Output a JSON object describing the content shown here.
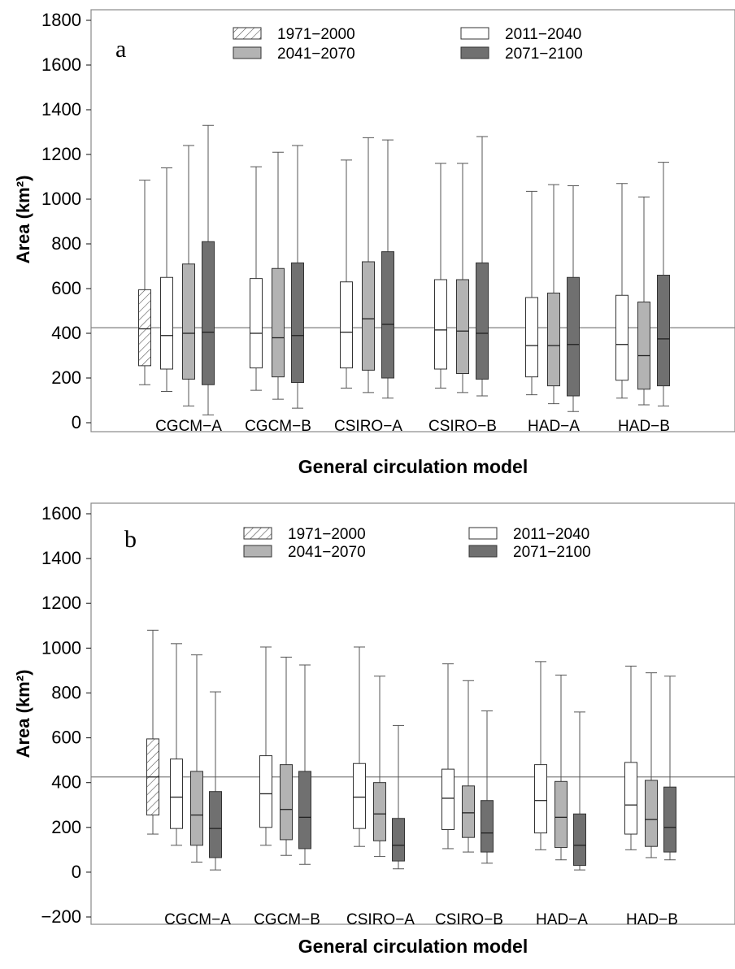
{
  "colors": {
    "1971-2000": "#ffffff",
    "2011-2040": "#ffffff",
    "2041-2070": "#b3b3b3",
    "2071-2100": "#707070",
    "hatch": "hatched-diagonal",
    "frame": "#888888",
    "reference_line": "#7f7f7f"
  },
  "chart_data": [
    {
      "type": "boxplot",
      "panel_label": "a",
      "xlabel": "General circulation model",
      "ylabel": "Area (km²)",
      "ylim": [
        0,
        1800
      ],
      "yticks": [
        0,
        200,
        400,
        600,
        800,
        1000,
        1200,
        1400,
        1600,
        1800
      ],
      "reference_line": 425,
      "legend": [
        "1971−2000",
        "2011−2040",
        "2041−2070",
        "2071−2100"
      ],
      "legend_position": "top",
      "baseline": {
        "period": "1971−2000",
        "whisker_low": 170,
        "q1": 255,
        "median": 420,
        "q3": 595,
        "whisker_high": 1085
      },
      "groups": [
        {
          "name": "CGCM−A",
          "boxes": [
            {
              "period": "2011−2040",
              "whisker_low": 140,
              "q1": 240,
              "median": 390,
              "q3": 650,
              "whisker_high": 1140
            },
            {
              "period": "2041−2070",
              "whisker_low": 75,
              "q1": 195,
              "median": 400,
              "q3": 710,
              "whisker_high": 1240
            },
            {
              "period": "2071−2100",
              "whisker_low": 35,
              "q1": 170,
              "median": 405,
              "q3": 810,
              "whisker_high": 1330
            }
          ]
        },
        {
          "name": "CGCM−B",
          "boxes": [
            {
              "period": "2011−2040",
              "whisker_low": 145,
              "q1": 245,
              "median": 400,
              "q3": 645,
              "whisker_high": 1145
            },
            {
              "period": "2041−2070",
              "whisker_low": 105,
              "q1": 205,
              "median": 380,
              "q3": 690,
              "whisker_high": 1210
            },
            {
              "period": "2071−2100",
              "whisker_low": 65,
              "q1": 180,
              "median": 390,
              "q3": 715,
              "whisker_high": 1240
            }
          ]
        },
        {
          "name": "CSIRO−A",
          "boxes": [
            {
              "period": "2011−2040",
              "whisker_low": 155,
              "q1": 245,
              "median": 405,
              "q3": 630,
              "whisker_high": 1175
            },
            {
              "period": "2041−2070",
              "whisker_low": 135,
              "q1": 235,
              "median": 465,
              "q3": 720,
              "whisker_high": 1275
            },
            {
              "period": "2071−2100",
              "whisker_low": 110,
              "q1": 200,
              "median": 440,
              "q3": 765,
              "whisker_high": 1265
            }
          ]
        },
        {
          "name": "CSIRO−B",
          "boxes": [
            {
              "period": "2011−2040",
              "whisker_low": 155,
              "q1": 240,
              "median": 415,
              "q3": 640,
              "whisker_high": 1160
            },
            {
              "period": "2041−2070",
              "whisker_low": 135,
              "q1": 220,
              "median": 410,
              "q3": 640,
              "whisker_high": 1160
            },
            {
              "period": "2071−2100",
              "whisker_low": 120,
              "q1": 195,
              "median": 400,
              "q3": 715,
              "whisker_high": 1280
            }
          ]
        },
        {
          "name": "HAD−A",
          "boxes": [
            {
              "period": "2011−2040",
              "whisker_low": 125,
              "q1": 205,
              "median": 345,
              "q3": 560,
              "whisker_high": 1035
            },
            {
              "period": "2041−2070",
              "whisker_low": 85,
              "q1": 165,
              "median": 345,
              "q3": 580,
              "whisker_high": 1065
            },
            {
              "period": "2071−2100",
              "whisker_low": 50,
              "q1": 120,
              "median": 350,
              "q3": 650,
              "whisker_high": 1060
            }
          ]
        },
        {
          "name": "HAD−B",
          "boxes": [
            {
              "period": "2011−2040",
              "whisker_low": 110,
              "q1": 190,
              "median": 350,
              "q3": 570,
              "whisker_high": 1070
            },
            {
              "period": "2041−2070",
              "whisker_low": 80,
              "q1": 150,
              "median": 300,
              "q3": 540,
              "whisker_high": 1010
            },
            {
              "period": "2071−2100",
              "whisker_low": 75,
              "q1": 165,
              "median": 375,
              "q3": 660,
              "whisker_high": 1165
            }
          ]
        }
      ]
    },
    {
      "type": "boxplot",
      "panel_label": "b",
      "xlabel": "General circulation model",
      "ylabel": "Area (km²)",
      "ylim": [
        -200,
        1600
      ],
      "yticks": [
        -200,
        0,
        200,
        400,
        600,
        800,
        1000,
        1200,
        1400,
        1600
      ],
      "reference_line": 425,
      "legend": [
        "1971−2000",
        "2011−2040",
        "2041−2070",
        "2071−2100"
      ],
      "legend_position": "top",
      "baseline": {
        "period": "1971−2000",
        "whisker_low": 170,
        "q1": 255,
        "median": 425,
        "q3": 595,
        "whisker_high": 1080
      },
      "groups": [
        {
          "name": "CGCM−A",
          "boxes": [
            {
              "period": "2011−2040",
              "whisker_low": 120,
              "q1": 195,
              "median": 335,
              "q3": 505,
              "whisker_high": 1020
            },
            {
              "period": "2041−2070",
              "whisker_low": 45,
              "q1": 120,
              "median": 255,
              "q3": 450,
              "whisker_high": 970
            },
            {
              "period": "2071−2100",
              "whisker_low": 10,
              "q1": 65,
              "median": 195,
              "q3": 360,
              "whisker_high": 805
            }
          ]
        },
        {
          "name": "CGCM−B",
          "boxes": [
            {
              "period": "2011−2040",
              "whisker_low": 120,
              "q1": 200,
              "median": 350,
              "q3": 520,
              "whisker_high": 1005
            },
            {
              "period": "2041−2070",
              "whisker_low": 75,
              "q1": 145,
              "median": 280,
              "q3": 480,
              "whisker_high": 960
            },
            {
              "period": "2071−2100",
              "whisker_low": 35,
              "q1": 105,
              "median": 245,
              "q3": 450,
              "whisker_high": 925
            }
          ]
        },
        {
          "name": "CSIRO−A",
          "boxes": [
            {
              "period": "2011−2040",
              "whisker_low": 115,
              "q1": 195,
              "median": 335,
              "q3": 485,
              "whisker_high": 1005
            },
            {
              "period": "2041−2070",
              "whisker_low": 70,
              "q1": 140,
              "median": 260,
              "q3": 400,
              "whisker_high": 875
            },
            {
              "period": "2071−2100",
              "whisker_low": 15,
              "q1": 50,
              "median": 120,
              "q3": 240,
              "whisker_high": 655
            }
          ]
        },
        {
          "name": "CSIRO−B",
          "boxes": [
            {
              "period": "2011−2040",
              "whisker_low": 105,
              "q1": 190,
              "median": 330,
              "q3": 460,
              "whisker_high": 930
            },
            {
              "period": "2041−2070",
              "whisker_low": 90,
              "q1": 155,
              "median": 265,
              "q3": 385,
              "whisker_high": 855
            },
            {
              "period": "2071−2100",
              "whisker_low": 40,
              "q1": 90,
              "median": 175,
              "q3": 320,
              "whisker_high": 720
            }
          ]
        },
        {
          "name": "HAD−A",
          "boxes": [
            {
              "period": "2011−2040",
              "whisker_low": 100,
              "q1": 175,
              "median": 320,
              "q3": 480,
              "whisker_high": 940
            },
            {
              "period": "2041−2070",
              "whisker_low": 55,
              "q1": 110,
              "median": 245,
              "q3": 405,
              "whisker_high": 880
            },
            {
              "period": "2071−2100",
              "whisker_low": 10,
              "q1": 30,
              "median": 120,
              "q3": 260,
              "whisker_high": 715
            }
          ]
        },
        {
          "name": "HAD−B",
          "boxes": [
            {
              "period": "2011−2040",
              "whisker_low": 100,
              "q1": 170,
              "median": 300,
              "q3": 490,
              "whisker_high": 920
            },
            {
              "period": "2041−2070",
              "whisker_low": 65,
              "q1": 115,
              "median": 235,
              "q3": 410,
              "whisker_high": 890
            },
            {
              "period": "2071−2100",
              "whisker_low": 55,
              "q1": 90,
              "median": 200,
              "q3": 380,
              "whisker_high": 875
            }
          ]
        }
      ]
    }
  ]
}
